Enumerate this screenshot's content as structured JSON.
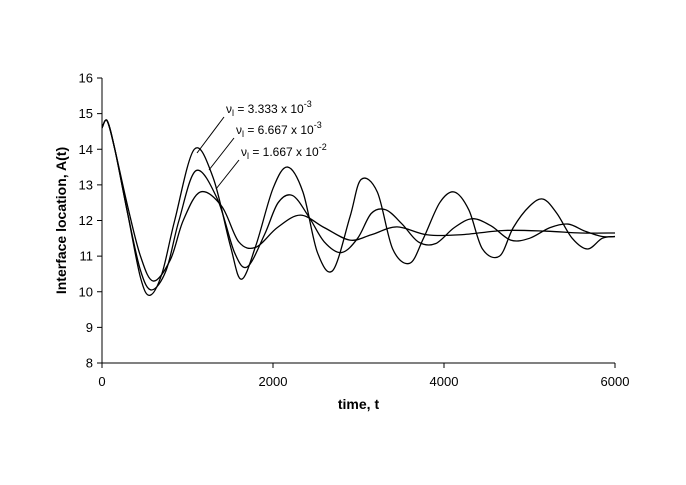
{
  "chart_data": {
    "type": "line",
    "xlabel": "time, t",
    "ylabel": "Interface location, A(t)",
    "xlim": [
      0,
      6000
    ],
    "ylim": [
      8,
      16
    ],
    "xticks": [
      "0",
      "2000",
      "4000",
      "6000"
    ],
    "yticks": [
      "8",
      "9",
      "10",
      "11",
      "12",
      "13",
      "14",
      "15",
      "16"
    ],
    "grid": false,
    "legend": "none",
    "series": [
      {
        "name": "ν_l = 3.333 x 10^-3",
        "label": {
          "sym": "ν",
          "sub": "l",
          "eq": " = 3.333 x 10",
          "exp": "-3"
        },
        "x": [
          0,
          60,
          150,
          300,
          450,
          560,
          700,
          850,
          1080,
          1300,
          1500,
          1630,
          1800,
          2000,
          2170,
          2350,
          2520,
          2700,
          2900,
          3030,
          3220,
          3400,
          3600,
          3760,
          3950,
          4120,
          4290,
          4450,
          4650,
          4810,
          5000,
          5160,
          5320,
          5500,
          5680,
          5850,
          6000
        ],
        "y": [
          14.6,
          14.8,
          14.0,
          12.2,
          10.4,
          9.9,
          10.5,
          12.0,
          14.0,
          13.2,
          11.3,
          10.35,
          11.3,
          12.9,
          13.5,
          12.8,
          11.1,
          10.6,
          12.1,
          13.15,
          12.8,
          11.2,
          10.8,
          11.5,
          12.5,
          12.8,
          12.3,
          11.2,
          11.0,
          11.8,
          12.4,
          12.6,
          12.2,
          11.5,
          11.2,
          11.5,
          11.55
        ]
      },
      {
        "name": "ν_l = 6.667 x 10^-3",
        "label": {
          "sym": "ν",
          "sub": "l",
          "eq": " = 6.667 x 10",
          "exp": "-3"
        },
        "x": [
          0,
          60,
          150,
          300,
          450,
          580,
          750,
          900,
          1100,
          1350,
          1550,
          1700,
          1900,
          2060,
          2230,
          2420,
          2600,
          2800,
          2990,
          3150,
          3320,
          3510,
          3700,
          3900,
          4120,
          4330,
          4550,
          4780,
          5000,
          5240,
          5450,
          5650,
          5850,
          6000
        ],
        "y": [
          14.6,
          14.8,
          14.0,
          12.2,
          10.6,
          10.05,
          10.6,
          12.0,
          13.4,
          12.6,
          11.1,
          10.7,
          11.6,
          12.5,
          12.7,
          12.1,
          11.4,
          11.1,
          11.5,
          12.2,
          12.3,
          11.9,
          11.4,
          11.35,
          11.8,
          12.05,
          11.85,
          11.45,
          11.5,
          11.8,
          11.9,
          11.7,
          11.55,
          11.55
        ]
      },
      {
        "name": "ν_l = 1.667 x 10^-2",
        "label": {
          "sym": "ν",
          "sub": "l",
          "eq": " = 1.667 x 10",
          "exp": "-2"
        },
        "x": [
          0,
          60,
          150,
          300,
          450,
          600,
          800,
          950,
          1150,
          1400,
          1600,
          1800,
          2050,
          2320,
          2600,
          2900,
          3150,
          3450,
          3800,
          4200,
          4700,
          5200,
          5600,
          6000
        ],
        "y": [
          14.6,
          14.8,
          14.0,
          12.4,
          11.0,
          10.3,
          10.9,
          12.0,
          12.8,
          12.4,
          11.4,
          11.25,
          11.8,
          12.15,
          11.8,
          11.45,
          11.6,
          11.82,
          11.6,
          11.6,
          11.72,
          11.7,
          11.65,
          11.65
        ]
      }
    ]
  }
}
